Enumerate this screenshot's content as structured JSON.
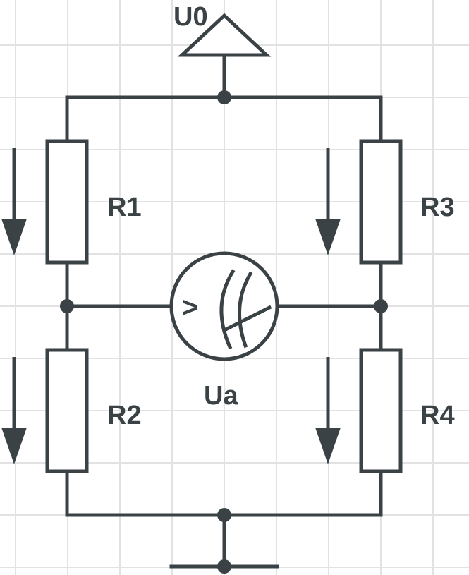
{
  "supply_label": "U0",
  "resistors": {
    "r1": "R1",
    "r2": "R2",
    "r3": "R3",
    "r4": "R4"
  },
  "meter": {
    "label": "Ua",
    "symbol": "voltmeter-icon",
    "glyph": ">"
  },
  "colors": {
    "ink": "#3a4245",
    "grid": "#e2e2e2",
    "background": "#ffffff"
  }
}
